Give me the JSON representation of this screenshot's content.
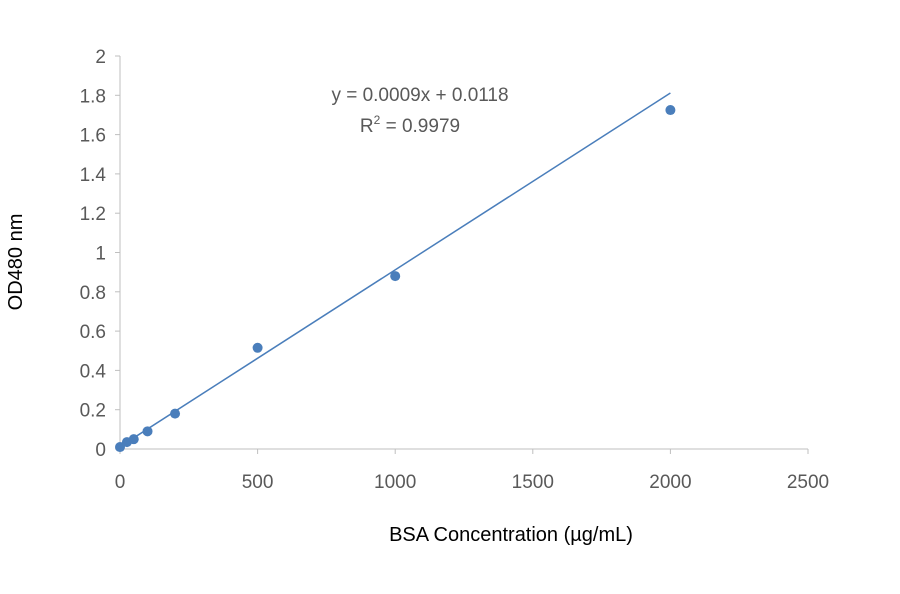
{
  "chart_data": {
    "type": "scatter",
    "xlabel": "BSA Concentration (µg/mL)",
    "ylabel": "OD480 nm",
    "xlim": [
      0,
      2500
    ],
    "ylim": [
      0,
      2
    ],
    "xticks": [
      0,
      500,
      1000,
      1500,
      2000,
      2500
    ],
    "yticks": [
      0,
      0.2,
      0.4,
      0.6,
      0.8,
      1,
      1.2,
      1.4,
      1.6,
      1.8,
      2
    ],
    "grid": false,
    "legend": false,
    "points": {
      "x": [
        0,
        25,
        50,
        100,
        200,
        500,
        1000,
        2000
      ],
      "y": [
        0.01,
        0.035,
        0.05,
        0.09,
        0.18,
        0.515,
        0.88,
        1.725
      ]
    },
    "trendline": {
      "type": "linear",
      "slope": 0.0009,
      "intercept": 0.0118,
      "x_range": [
        0,
        2000
      ],
      "equation": "y = 0.0009x + 0.0118",
      "r2_prefix": "R",
      "r2_sup": "2",
      "r2_suffix": " = 0.9979"
    },
    "colors": {
      "marker": "#4a7ebb",
      "trendline": "#4a7ebb",
      "axis": "#bfbfbf",
      "tick_label": "#595959"
    }
  }
}
